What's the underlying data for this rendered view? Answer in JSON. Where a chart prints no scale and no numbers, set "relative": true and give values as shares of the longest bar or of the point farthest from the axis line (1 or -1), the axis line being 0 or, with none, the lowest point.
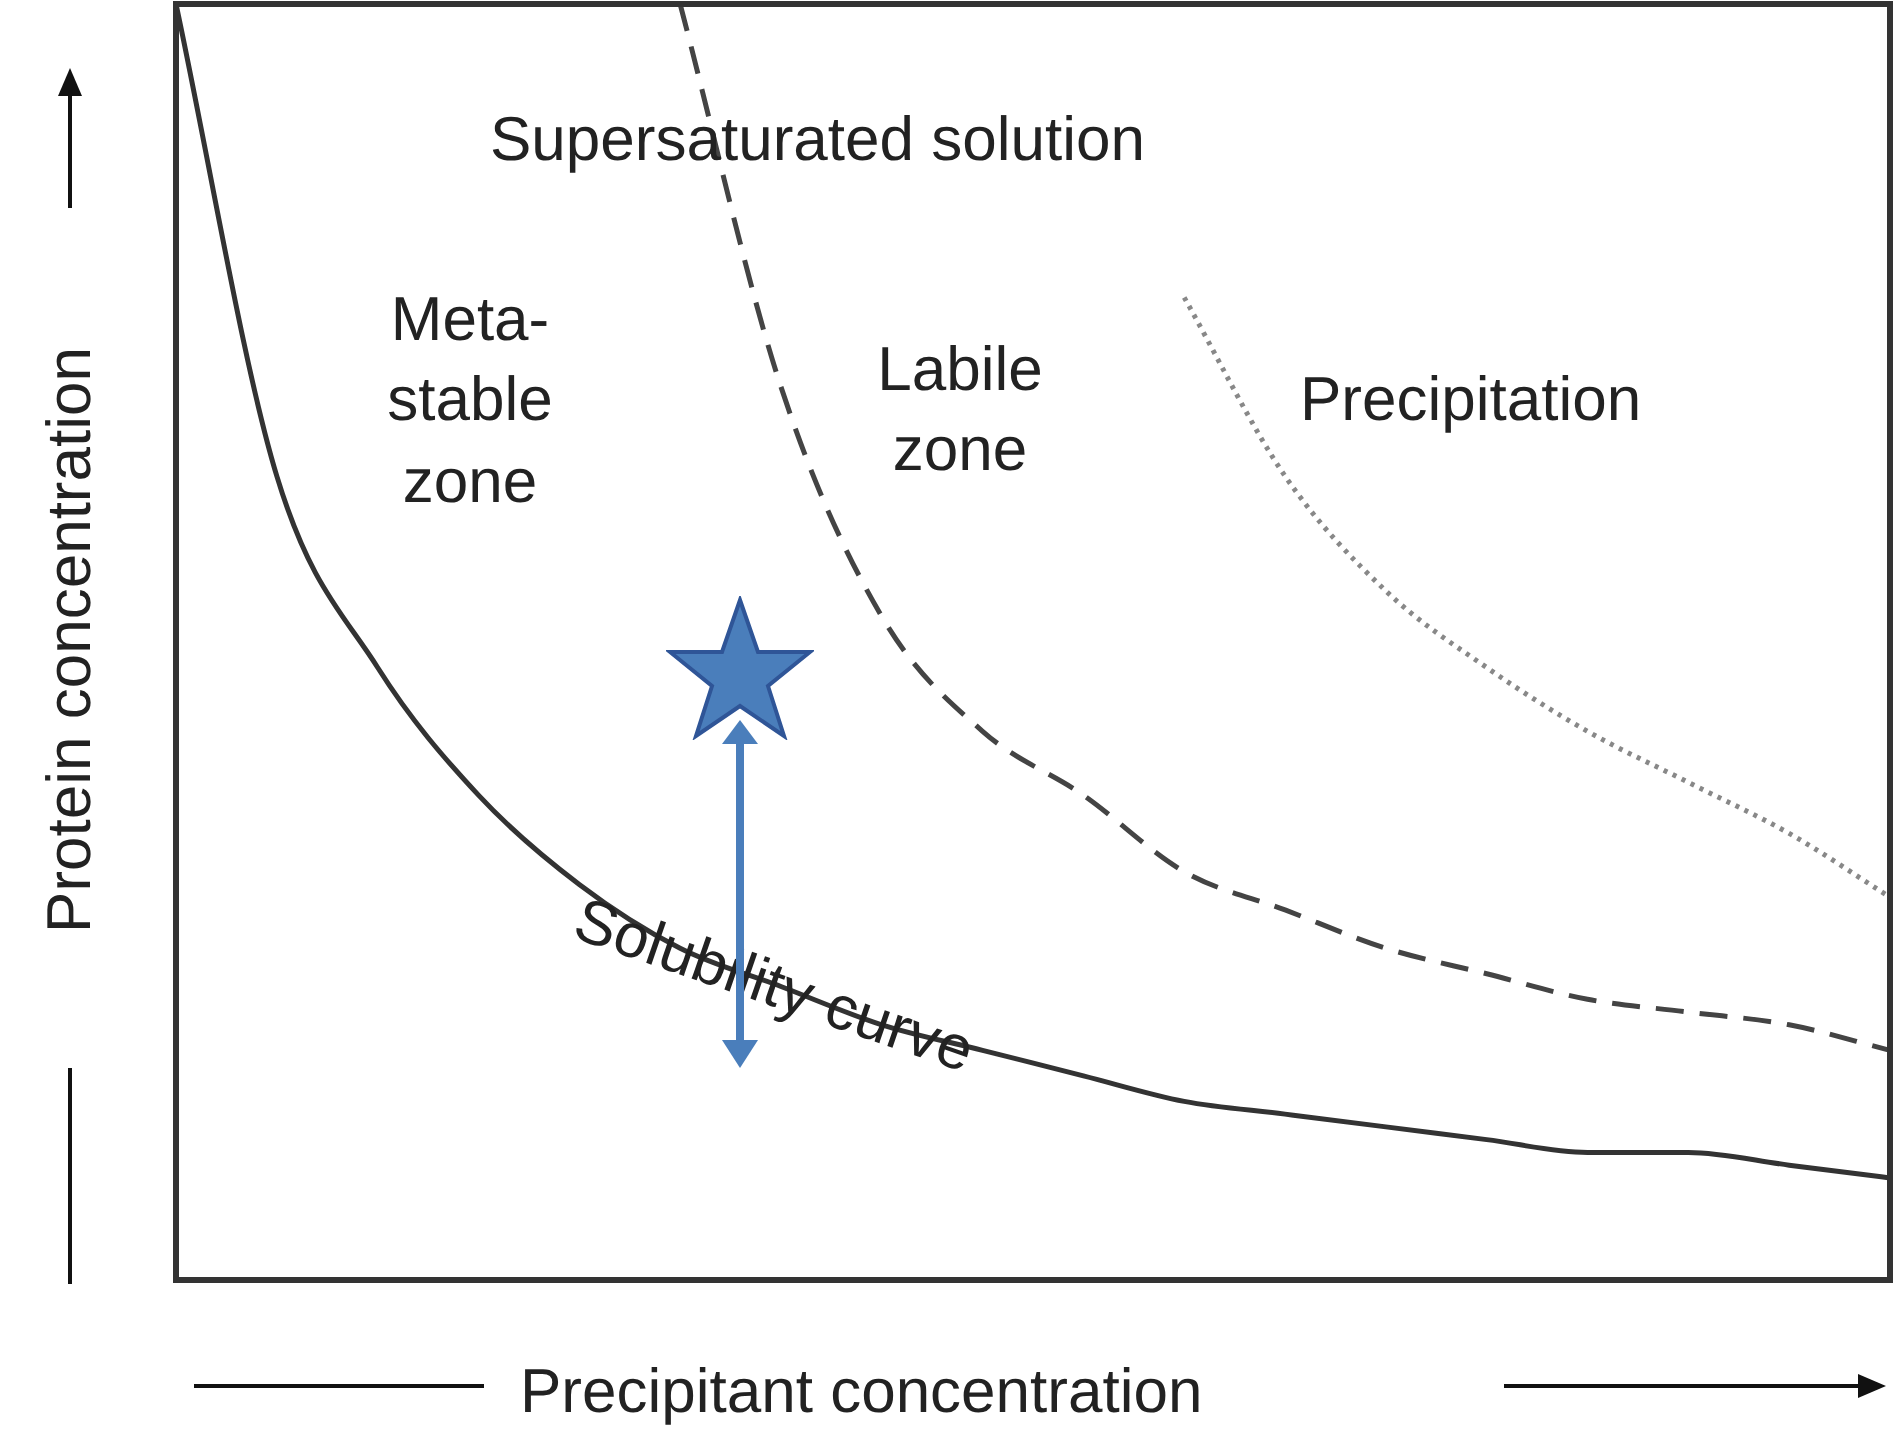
{
  "chart_data": {
    "type": "line",
    "relative": true,
    "xlabel": "Precipitant concentration",
    "ylabel": "Protein concentration",
    "categories": [
      null,
      null,
      null,
      null,
      null,
      null,
      null,
      null,
      null,
      null,
      null,
      null,
      null,
      null,
      null,
      null,
      null,
      null
    ],
    "series": [
      {
        "color": "#333333",
        "line_style": "solid",
        "values": [
          1.0,
          0.63,
          0.48,
          0.38,
          0.31,
          0.26,
          0.23,
          0.2,
          0.18,
          0.16,
          0.14,
          0.13,
          0.12,
          0.11,
          0.1,
          0.1,
          0.09,
          0.08
        ]
      },
      {
        "color": "#444444",
        "line_style": "dashed",
        "values": [
          null,
          null,
          null,
          null,
          null,
          1.0,
          0.7,
          0.52,
          0.43,
          0.38,
          0.32,
          0.29,
          0.26,
          0.24,
          0.22,
          0.21,
          0.2,
          0.18
        ]
      },
      {
        "color": "#888888",
        "line_style": "dotted",
        "values": [
          null,
          null,
          null,
          null,
          null,
          null,
          null,
          null,
          null,
          null,
          0.77,
          0.63,
          0.54,
          0.48,
          0.43,
          0.39,
          0.35,
          0.3
        ]
      }
    ],
    "marker": "none",
    "legend": false,
    "annotations": [
      "Supersaturated solution",
      "Meta-stable zone",
      "Labile zone",
      "Precipitation",
      "Solubility curve"
    ]
  }
}
